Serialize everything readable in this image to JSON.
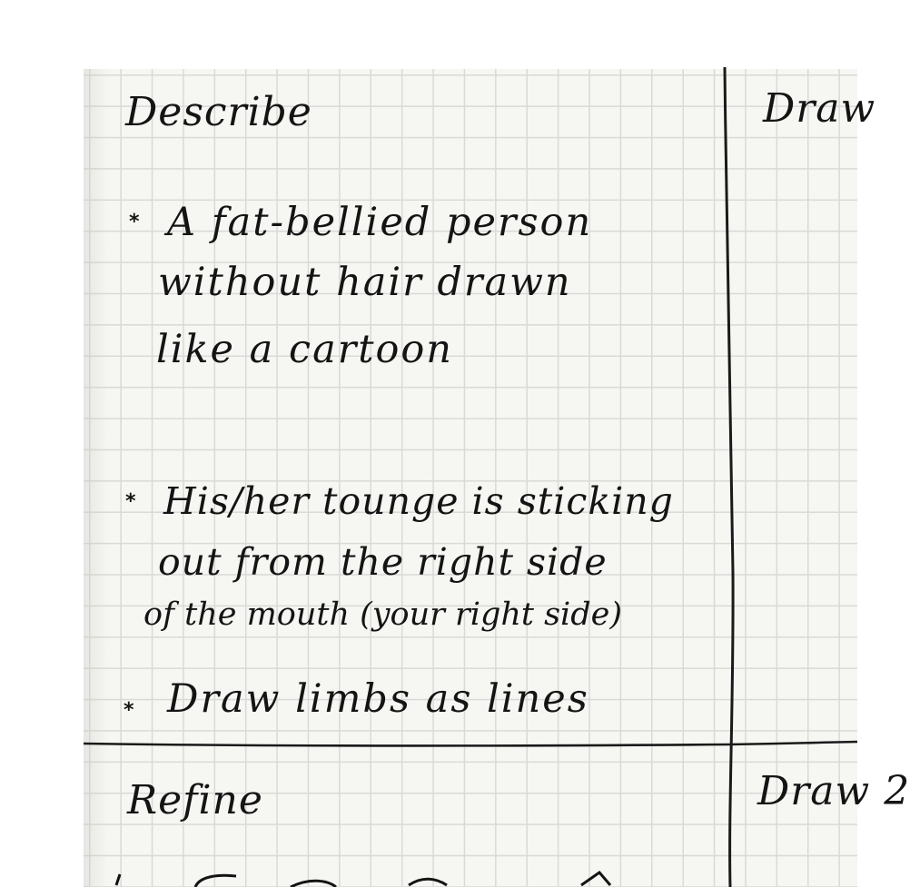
{
  "sections": {
    "describe": {
      "heading": "Describe",
      "bullets": [
        {
          "marker": "*",
          "lines": [
            "A fat-bellied person",
            "without hair drawn",
            "like a cartoon"
          ]
        },
        {
          "marker": "*",
          "lines": [
            "His/her tounge is sticking",
            "out from the right side",
            "of the mouth (your right side)"
          ]
        },
        {
          "marker": "*",
          "lines": [
            "Draw limbs as lines"
          ]
        }
      ]
    },
    "draw_top": {
      "heading": "Draw"
    },
    "refine": {
      "heading": "Refine"
    },
    "draw_bottom": {
      "heading": "Draw 2"
    }
  }
}
